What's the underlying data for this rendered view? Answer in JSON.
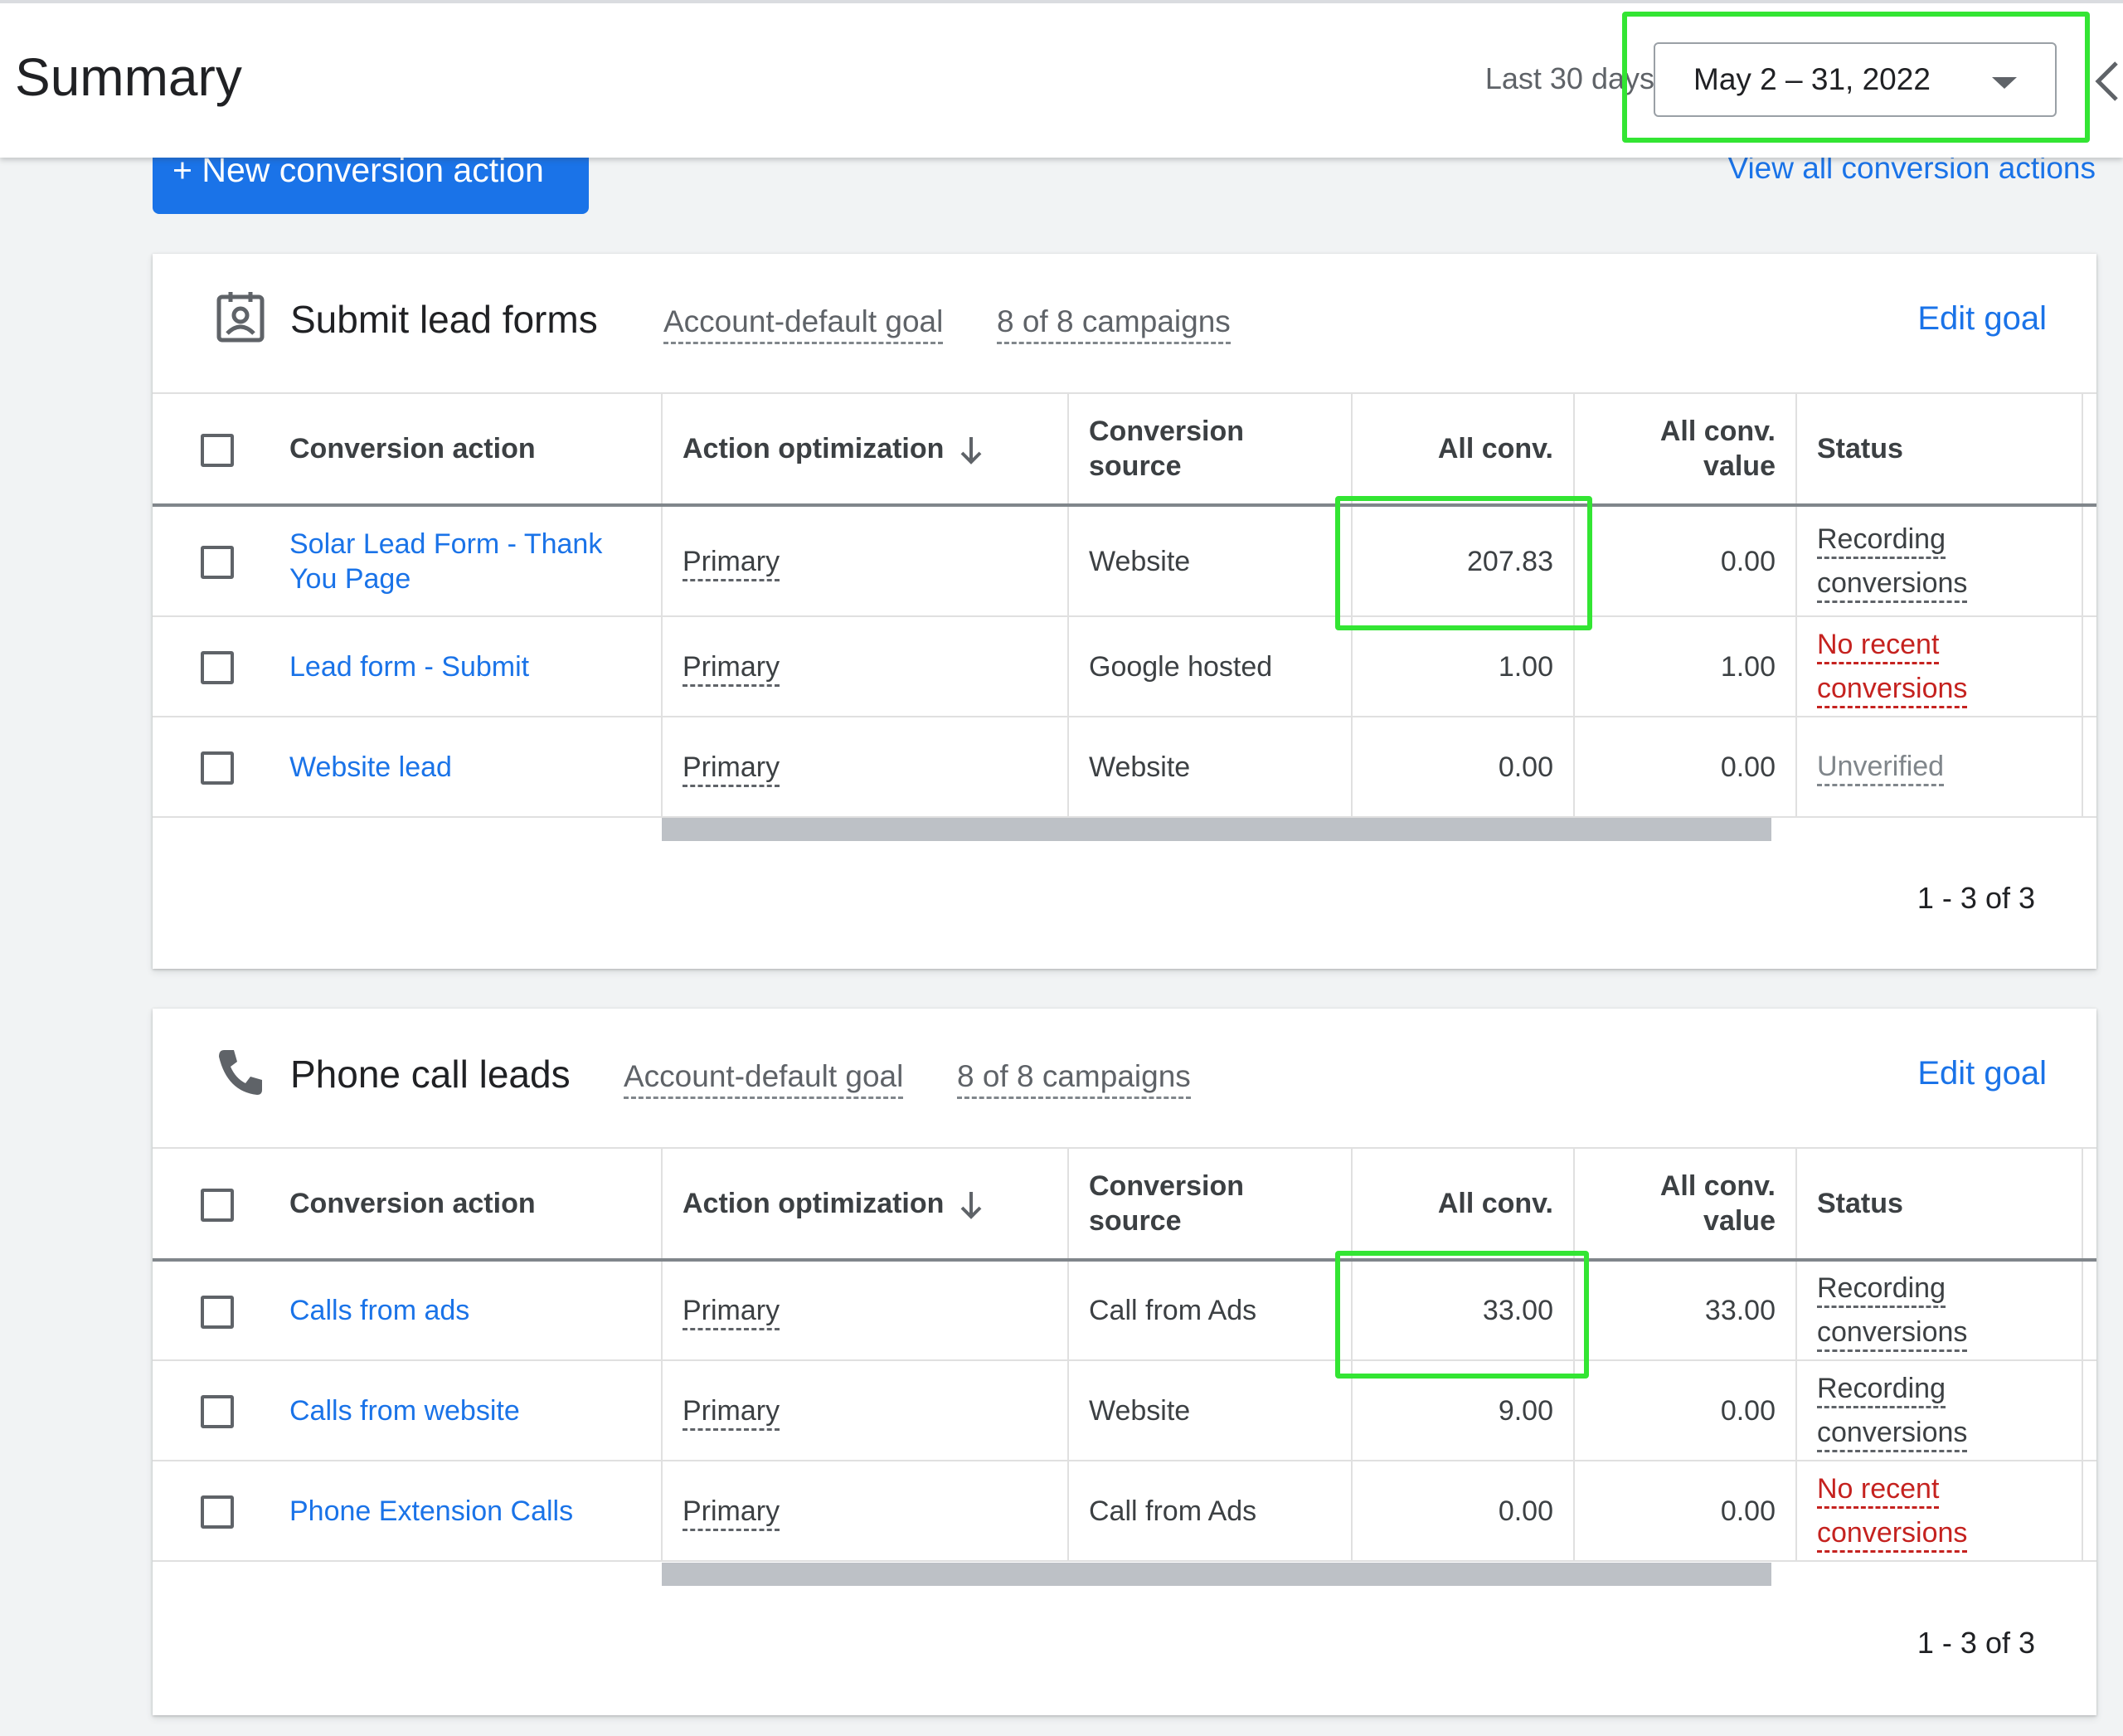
{
  "header": {
    "title": "Summary",
    "range_label": "Last 30 days",
    "date_range": "May 2 – 31, 2022"
  },
  "toolbar": {
    "new_button": "+ New conversion action",
    "view_all": "View all conversion actions"
  },
  "columns": {
    "action": "Conversion action",
    "optimization": "Action optimization",
    "source_line1": "Conversion",
    "source_line2": "source",
    "all_conv": "All conv.",
    "value_line1": "All conv.",
    "value_line2": "value",
    "status": "Status"
  },
  "goals": [
    {
      "icon": "lead-form-icon",
      "title": "Submit lead forms",
      "scope": "Account-default goal",
      "campaigns": "8 of 8 campaigns",
      "edit": "Edit goal",
      "pager": "1 - 3 of 3",
      "rows": [
        {
          "name_line1": "Solar Lead Form - Thank",
          "name_line2": "You Page",
          "optimization": "Primary",
          "source": "Website",
          "all_conv": "207.83",
          "value": "0.00",
          "status_line1": "Recording",
          "status_line2": "conversions",
          "status_kind": "recording"
        },
        {
          "name_line1": "Lead form - Submit",
          "name_line2": "",
          "optimization": "Primary",
          "source": "Google hosted",
          "all_conv": "1.00",
          "value": "1.00",
          "status_line1": "No recent",
          "status_line2": "conversions",
          "status_kind": "warning"
        },
        {
          "name_line1": "Website lead",
          "name_line2": "",
          "optimization": "Primary",
          "source": "Website",
          "all_conv": "0.00",
          "value": "0.00",
          "status_line1": "Unverified",
          "status_line2": "",
          "status_kind": "unverified"
        }
      ]
    },
    {
      "icon": "phone-icon",
      "title": "Phone call leads",
      "scope": "Account-default goal",
      "campaigns": "8 of 8 campaigns",
      "edit": "Edit goal",
      "pager": "1 - 3 of 3",
      "rows": [
        {
          "name_line1": "Calls from ads",
          "name_line2": "",
          "optimization": "Primary",
          "source": "Call from Ads",
          "all_conv": "33.00",
          "value": "33.00",
          "status_line1": "Recording",
          "status_line2": "conversions",
          "status_kind": "recording"
        },
        {
          "name_line1": "Calls from website",
          "name_line2": "",
          "optimization": "Primary",
          "source": "Website",
          "all_conv": "9.00",
          "value": "0.00",
          "status_line1": "Recording",
          "status_line2": "conversions",
          "status_kind": "recording"
        },
        {
          "name_line1": "Phone Extension Calls",
          "name_line2": "",
          "optimization": "Primary",
          "source": "Call from Ads",
          "all_conv": "0.00",
          "value": "0.00",
          "status_line1": "No recent",
          "status_line2": "conversions",
          "status_kind": "warning"
        }
      ]
    }
  ],
  "colors": {
    "accent": "#1a73e8",
    "highlight": "#33e533",
    "warning": "#c5221f"
  }
}
